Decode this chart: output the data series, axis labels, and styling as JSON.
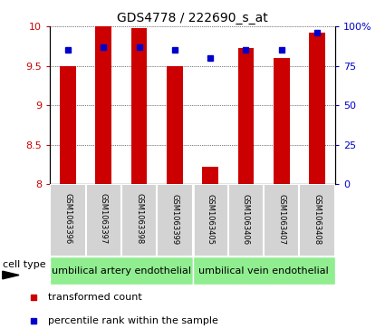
{
  "title": "GDS4778 / 222690_s_at",
  "samples": [
    "GSM1063396",
    "GSM1063397",
    "GSM1063398",
    "GSM1063399",
    "GSM1063405",
    "GSM1063406",
    "GSM1063407",
    "GSM1063408"
  ],
  "red_values": [
    9.5,
    10.0,
    9.98,
    9.5,
    8.22,
    9.72,
    9.6,
    9.92
  ],
  "blue_percentiles": [
    85,
    87,
    87,
    85,
    80,
    85,
    85,
    96
  ],
  "ylim": [
    8,
    10
  ],
  "yticks": [
    8,
    8.5,
    9,
    9.5,
    10
  ],
  "right_yticks": [
    0,
    25,
    50,
    75,
    100
  ],
  "right_ylim": [
    0,
    100
  ],
  "bar_width": 0.45,
  "bar_color": "#cc0000",
  "dot_color": "#0000cc",
  "bar_bottom": 8,
  "left_tick_color": "#cc0000",
  "right_tick_color": "#0000cc",
  "group1_label": "umbilical artery endothelial",
  "group2_label": "umbilical vein endothelial",
  "group1_indices": [
    0,
    1,
    2,
    3
  ],
  "group2_indices": [
    4,
    5,
    6,
    7
  ],
  "cell_type_label": "cell type",
  "legend1_label": "transformed count",
  "legend2_label": "percentile rank within the sample",
  "background_color": "#ffffff",
  "plot_bg": "#ffffff",
  "group_bg": "#90ee90",
  "sample_bg": "#d3d3d3",
  "title_fontsize": 10,
  "tick_fontsize": 8,
  "label_fontsize": 8,
  "sample_fontsize": 6,
  "group_fontsize": 8,
  "legend_fontsize": 8
}
